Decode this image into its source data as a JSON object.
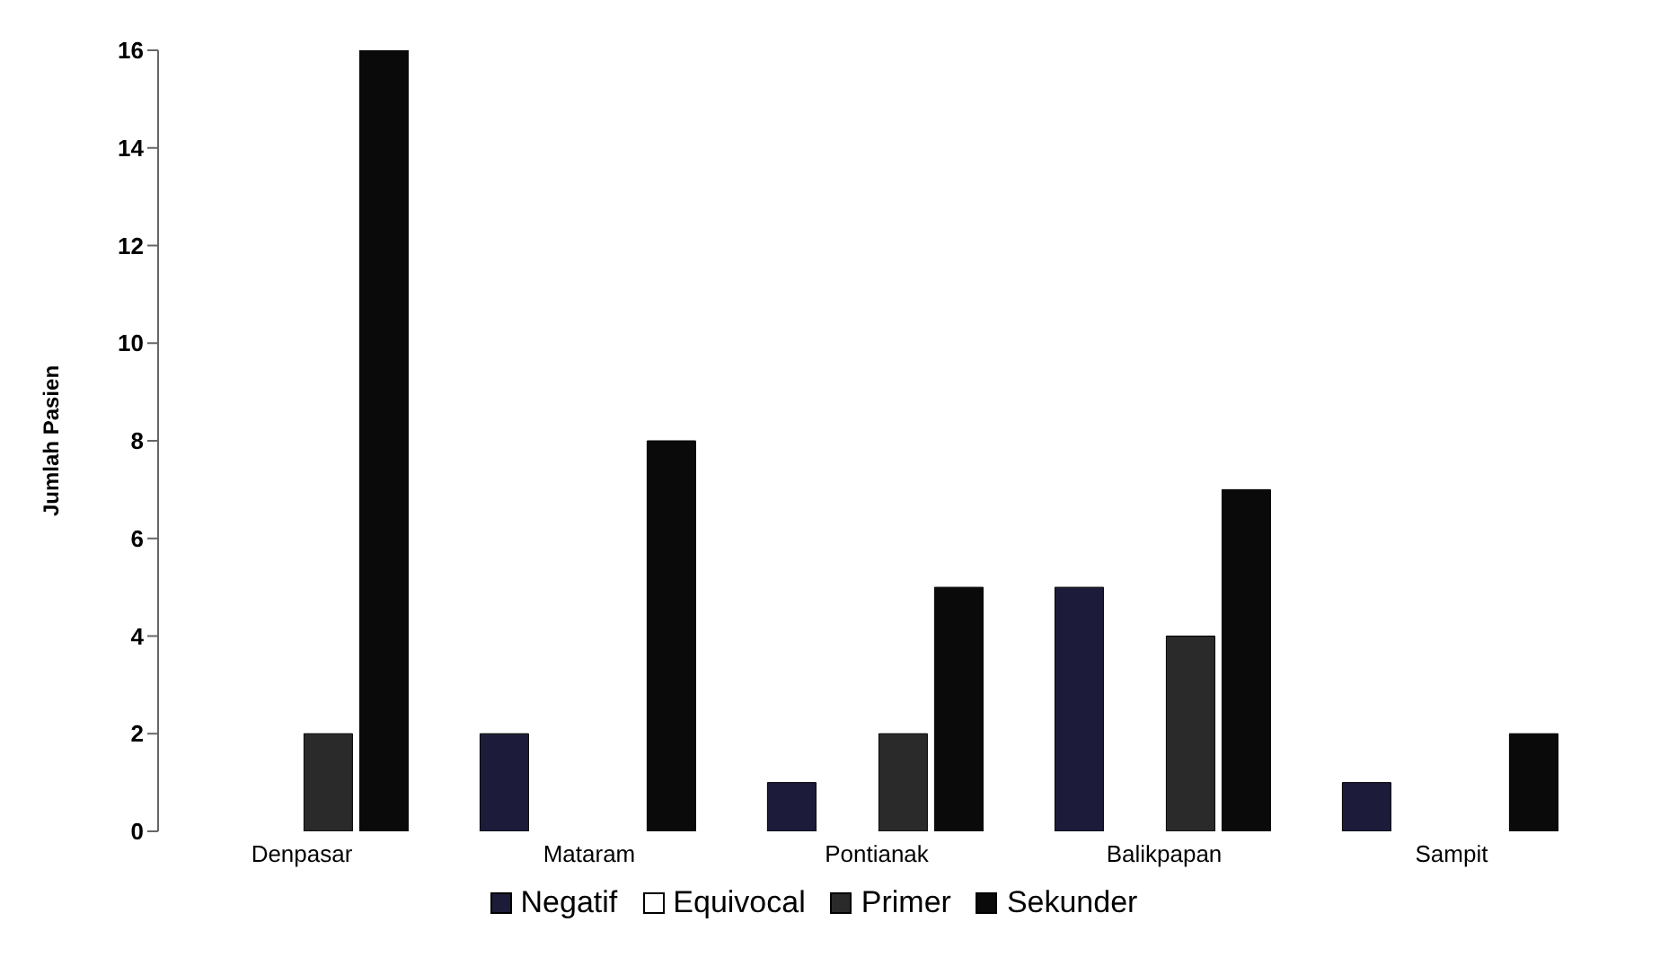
{
  "chart_data": {
    "type": "bar",
    "ylabel": "Jumlah Pasien",
    "categories": [
      "Denpasar",
      "Mataram",
      "Pontianak",
      "Balikpapan",
      "Sampit"
    ],
    "series": [
      {
        "name": "Negatif",
        "color": "#1c1c3a",
        "values": [
          0,
          2,
          1,
          5,
          1
        ]
      },
      {
        "name": "Equivocal",
        "color": "#ffffff",
        "values": [
          0,
          0,
          0,
          0,
          0
        ]
      },
      {
        "name": "Primer",
        "color": "#2a2a2a",
        "values": [
          2,
          0,
          2,
          4,
          0
        ]
      },
      {
        "name": "Sekunder",
        "color": "#0a0a0a",
        "values": [
          16,
          8,
          5,
          7,
          2
        ]
      }
    ],
    "ylim": [
      0,
      16
    ],
    "yticks": [
      0,
      2,
      4,
      6,
      8,
      10,
      12,
      14,
      16
    ],
    "legend": "bottom",
    "grid": false
  }
}
